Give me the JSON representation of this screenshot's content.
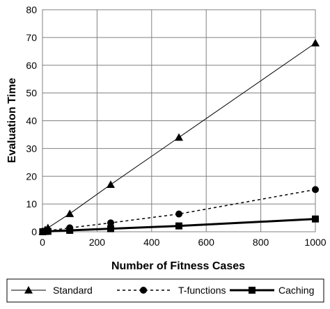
{
  "chart_data": {
    "type": "line",
    "xlabel": "Number of Fitness Cases",
    "ylabel": "Evaluation Time",
    "xlim": [
      0,
      1000
    ],
    "ylim": [
      0,
      80
    ],
    "xticks": [
      0,
      200,
      400,
      600,
      800,
      1000
    ],
    "yticks": [
      0,
      10,
      20,
      30,
      40,
      50,
      60,
      70,
      80
    ],
    "xtick_labels": [
      "0",
      "200",
      "400",
      "600",
      "800",
      "1000"
    ],
    "ytick_labels": [
      "0",
      "10",
      "20",
      "30",
      "40",
      "50",
      "60",
      "70",
      "80"
    ],
    "grid": true,
    "legend_position": "bottom",
    "series": [
      {
        "name": "Standard",
        "marker": "triangle",
        "line_style": "solid-thin",
        "x": [
          1,
          10,
          20,
          100,
          250,
          500,
          1000
        ],
        "y": [
          0.1,
          0.7,
          1.4,
          6.5,
          17,
          34,
          68
        ]
      },
      {
        "name": "T-functions",
        "marker": "circle",
        "line_style": "dashed",
        "x": [
          1,
          10,
          20,
          100,
          250,
          500,
          1000
        ],
        "y": [
          0.05,
          0.2,
          0.35,
          1.4,
          3.2,
          6.4,
          15.2
        ]
      },
      {
        "name": "Caching",
        "marker": "square",
        "line_style": "solid-thick",
        "x": [
          1,
          10,
          20,
          100,
          250,
          500,
          1000
        ],
        "y": [
          0.02,
          0.1,
          0.15,
          0.5,
          1.1,
          2.1,
          4.6
        ]
      }
    ]
  },
  "colors": {
    "line": "#000000",
    "grid": "#808080",
    "background": "#ffffff"
  }
}
